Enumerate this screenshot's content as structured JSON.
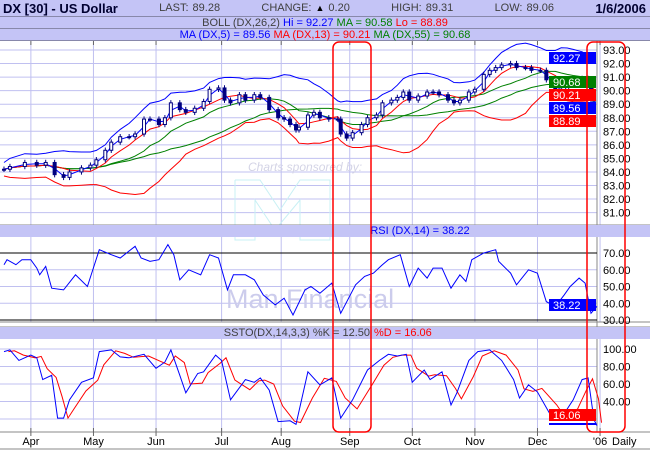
{
  "header": {
    "title": "DX [30] - US Dollar",
    "last_label": "LAST:",
    "last": "89.28",
    "change_label": "CHANGE:",
    "change_icon": "triangle-up-icon",
    "change": "0.20",
    "high_label": "HIGH:",
    "high": "89.31",
    "low_label": "LOW:",
    "low": "89.06",
    "date": "1/6/2006"
  },
  "boll_legend": {
    "name": "BOLL (DX,26,2)",
    "hi": "Hi = 92.27",
    "ma": "MA = 90.58",
    "lo": "Lo = 88.89"
  },
  "ma_legend": {
    "ma5": "MA (DX,5) = 89.56",
    "ma13": "MA (DX,13) = 90.21",
    "ma55": "MA (DX,55) = 90.68"
  },
  "rsi_legend": "RSI (DX,14) = 38.22",
  "ssto_legend": {
    "k": "SSTO(DX,14,3,3) %K = 12.50",
    "d": "%D = 16.06"
  },
  "watermark": {
    "sponsor": "Charts sponsored by:",
    "brand": "Man Financial"
  },
  "colors": {
    "header_bg": "#c4c4f6",
    "grid": "#c0c0f0",
    "candle": "#000080",
    "blue": "#0000ff",
    "red": "#ff0000",
    "green": "#008000",
    "highlight": "#ff0000"
  },
  "chart_data": [
    {
      "type": "candlestick",
      "title": "DX [30] - US Dollar",
      "x_unit": "trading day index",
      "xlim": [
        0,
        200
      ],
      "ylim": [
        80.2,
        93.6
      ],
      "y_ticks": [
        "93.00",
        "92.00",
        "91.00",
        "90.00",
        "89.00",
        "88.00",
        "87.00",
        "86.00",
        "85.00",
        "84.00",
        "83.00",
        "82.00",
        "81.00"
      ],
      "x_ticks": [
        {
          "t": 6,
          "label": "Apr"
        },
        {
          "t": 27,
          "label": "May"
        },
        {
          "t": 48,
          "label": "Jun"
        },
        {
          "t": 70,
          "label": "Jul"
        },
        {
          "t": 90,
          "label": "Aug"
        },
        {
          "t": 113,
          "label": "Sep"
        },
        {
          "t": 134,
          "label": "Oct"
        },
        {
          "t": 155,
          "label": "Nov"
        },
        {
          "t": 176,
          "label": "Dec"
        },
        {
          "t": 197,
          "label": "'06"
        }
      ],
      "period_label": "Daily",
      "grid": true,
      "close": [
        [
          1,
          84.2
        ],
        [
          3,
          84.4
        ],
        [
          8,
          84.7
        ],
        [
          12,
          84.5
        ],
        [
          15,
          84.7
        ],
        [
          18,
          83.8
        ],
        [
          21,
          83.6
        ],
        [
          23,
          84.0
        ],
        [
          27,
          84.3
        ],
        [
          30,
          84.5
        ],
        [
          32,
          84.9
        ],
        [
          35,
          85.6
        ],
        [
          37,
          86.2
        ],
        [
          40,
          86.6
        ],
        [
          43,
          86.6
        ],
        [
          45,
          86.8
        ],
        [
          48,
          87.9
        ],
        [
          50,
          87.9
        ],
        [
          53,
          87.5
        ],
        [
          55,
          88.0
        ],
        [
          57,
          89.1
        ],
        [
          60,
          88.6
        ],
        [
          62,
          88.4
        ],
        [
          65,
          88.7
        ],
        [
          68,
          89.2
        ],
        [
          70,
          90.1
        ],
        [
          73,
          90.2
        ],
        [
          75,
          89.3
        ],
        [
          77,
          89.1
        ],
        [
          80,
          89.7
        ],
        [
          82,
          89.3
        ],
        [
          85,
          89.7
        ],
        [
          87,
          89.5
        ],
        [
          90,
          88.6
        ],
        [
          93,
          88.0
        ],
        [
          95,
          87.9
        ],
        [
          97,
          87.5
        ],
        [
          99,
          87.1
        ],
        [
          100,
          87.3
        ],
        [
          103,
          88.2
        ],
        [
          105,
          88.4
        ],
        [
          107,
          88.0
        ],
        [
          110,
          87.9
        ],
        [
          113,
          87.9
        ],
        [
          114,
          86.8
        ],
        [
          116,
          86.5
        ],
        [
          118,
          86.9
        ],
        [
          121,
          87.5
        ],
        [
          123,
          88.0
        ],
        [
          126,
          88.2
        ],
        [
          128,
          89.1
        ],
        [
          131,
          89.3
        ],
        [
          133,
          89.5
        ],
        [
          135,
          89.9
        ],
        [
          137,
          89.3
        ],
        [
          140,
          89.6
        ],
        [
          143,
          89.9
        ],
        [
          145,
          89.9
        ],
        [
          147,
          89.7
        ],
        [
          150,
          89.3
        ],
        [
          152,
          89.1
        ],
        [
          154,
          89.3
        ],
        [
          157,
          89.9
        ],
        [
          159,
          90.1
        ],
        [
          162,
          91.2
        ],
        [
          164,
          91.5
        ],
        [
          166,
          91.7
        ],
        [
          168,
          91.9
        ],
        [
          171,
          92.0
        ],
        [
          173,
          91.7
        ],
        [
          176,
          91.7
        ],
        [
          178,
          91.5
        ],
        [
          181,
          91.5
        ],
        [
          183,
          90.8
        ],
        [
          186,
          90.1
        ],
        [
          188,
          89.9
        ],
        [
          190,
          90.4
        ],
        [
          192,
          90.8
        ],
        [
          195,
          90.9
        ],
        [
          197,
          90.4
        ],
        [
          198,
          89.3
        ],
        [
          199,
          89.28
        ]
      ],
      "value_labels": [
        {
          "value": "92.27",
          "color": "#0000ff",
          "level": 92.27
        },
        {
          "value": "90.68",
          "color": "#008000",
          "level": 90.68
        },
        {
          "value": "90.21",
          "color": "#ff0000",
          "level": 90.21
        },
        {
          "value": "89.56",
          "color": "#0000ff",
          "level": 89.56
        },
        {
          "value": "88.89",
          "color": "#ff0000",
          "level": 88.89
        }
      ],
      "overlays": [
        "BOLL (DX,26,2)",
        "MA (DX,5)",
        "MA (DX,13)",
        "MA (DX,55)"
      ]
    },
    {
      "type": "line",
      "title": "RSI (DX,14) = 38.22",
      "ylim": [
        28,
        80
      ],
      "y_ticks": [
        "70.00",
        "60.00",
        "50.00",
        "40.00",
        "30.00"
      ],
      "ref_lines": [
        70,
        30
      ],
      "last_label": {
        "value": "38.22",
        "color": "#0000ff"
      },
      "series": [
        {
          "color": "#0000ff",
          "points": [
            [
              1,
              63
            ],
            [
              2,
              66
            ],
            [
              5,
              63
            ],
            [
              7,
              66
            ],
            [
              10,
              66
            ],
            [
              12,
              61
            ],
            [
              13,
              57
            ],
            [
              15,
              62
            ],
            [
              17,
              49
            ],
            [
              21,
              48
            ],
            [
              25,
              57
            ],
            [
              29,
              50
            ],
            [
              33,
              72
            ],
            [
              37,
              69
            ],
            [
              40,
              67
            ],
            [
              45,
              74
            ],
            [
              47,
              67
            ],
            [
              50,
              65
            ],
            [
              53,
              66
            ],
            [
              56,
              75
            ],
            [
              58,
              69
            ],
            [
              60,
              54
            ],
            [
              63,
              60
            ],
            [
              67,
              57
            ],
            [
              70,
              69
            ],
            [
              73,
              67
            ],
            [
              76,
              48
            ],
            [
              78,
              57
            ],
            [
              82,
              57
            ],
            [
              85,
              54
            ],
            [
              88,
              45
            ],
            [
              92,
              39
            ],
            [
              95,
              43
            ],
            [
              98,
              33
            ],
            [
              102,
              48
            ],
            [
              104,
              50
            ],
            [
              107,
              46
            ],
            [
              111,
              52
            ],
            [
              114,
              34
            ],
            [
              119,
              51
            ],
            [
              122,
              56
            ],
            [
              125,
              58
            ],
            [
              128,
              63
            ],
            [
              130,
              66
            ],
            [
              134,
              69
            ],
            [
              137,
              50
            ],
            [
              140,
              61
            ],
            [
              143,
              55
            ],
            [
              145,
              61
            ],
            [
              148,
              61
            ],
            [
              151,
              49
            ],
            [
              154,
              57
            ],
            [
              156,
              53
            ],
            [
              158,
              66
            ],
            [
              162,
              70
            ],
            [
              166,
              72
            ],
            [
              167,
              65
            ],
            [
              171,
              58
            ],
            [
              173,
              51
            ],
            [
              177,
              60
            ],
            [
              180,
              58
            ],
            [
              183,
              41
            ],
            [
              186,
              38
            ],
            [
              189,
              45
            ],
            [
              191,
              50
            ],
            [
              194,
              55
            ],
            [
              196,
              52
            ],
            [
              198,
              34
            ],
            [
              200,
              38.22
            ]
          ]
        }
      ]
    },
    {
      "type": "line",
      "title": "SSTO(DX,14,3,3)",
      "ylim": [
        0,
        110
      ],
      "y_ticks": [
        "100.00",
        "80.00",
        "60.00",
        "40.00"
      ],
      "last_label": {
        "value": "16.06",
        "color": "#ff0000"
      },
      "series": [
        {
          "name": "%K",
          "color": "#0000ff",
          "points": [
            [
              1,
              97
            ],
            [
              3,
              99
            ],
            [
              6,
              87
            ],
            [
              10,
              93
            ],
            [
              12,
              90
            ],
            [
              14,
              65
            ],
            [
              17,
              70
            ],
            [
              19,
              21
            ],
            [
              21,
              21
            ],
            [
              23,
              42
            ],
            [
              27,
              62
            ],
            [
              31,
              67
            ],
            [
              33,
              97
            ],
            [
              37,
              99
            ],
            [
              40,
              91
            ],
            [
              43,
              90
            ],
            [
              48,
              94
            ],
            [
              52,
              78
            ],
            [
              55,
              85
            ],
            [
              57,
              99
            ],
            [
              60,
              70
            ],
            [
              62,
              50
            ],
            [
              66,
              72
            ],
            [
              68,
              74
            ],
            [
              72,
              93
            ],
            [
              74,
              87
            ],
            [
              77,
              42
            ],
            [
              82,
              65
            ],
            [
              85,
              62
            ],
            [
              87,
              67
            ],
            [
              90,
              53
            ],
            [
              93,
              17
            ],
            [
              97,
              18
            ],
            [
              99,
              14
            ],
            [
              103,
              74
            ],
            [
              107,
              59
            ],
            [
              111,
              67
            ],
            [
              114,
              21
            ],
            [
              118,
              42
            ],
            [
              123,
              76
            ],
            [
              127,
              87
            ],
            [
              130,
              94
            ],
            [
              133,
              92
            ],
            [
              136,
              94
            ],
            [
              138,
              62
            ],
            [
              142,
              76
            ],
            [
              144,
              65
            ],
            [
              148,
              74
            ],
            [
              151,
              36
            ],
            [
              153,
              50
            ],
            [
              157,
              87
            ],
            [
              160,
              97
            ],
            [
              164,
              99
            ],
            [
              168,
              87
            ],
            [
              172,
              65
            ],
            [
              174,
              44
            ],
            [
              177,
              59
            ],
            [
              180,
              51
            ],
            [
              185,
              21
            ],
            [
              188,
              21
            ],
            [
              192,
              42
            ],
            [
              195,
              65
            ],
            [
              197,
              67
            ],
            [
              199,
              19
            ],
            [
              200,
              12.5
            ]
          ]
        },
        {
          "name": "%D",
          "color": "#ff0000",
          "smoothing_of": "%K"
        }
      ]
    }
  ]
}
